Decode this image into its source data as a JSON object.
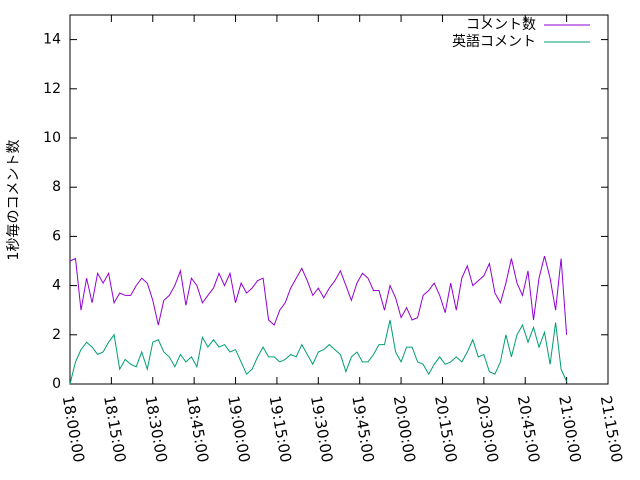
{
  "chart_data": {
    "type": "line",
    "ylabel": "1秒毎のコメント数",
    "x": [
      "18:00:00",
      "18:02:00",
      "18:04:00",
      "18:06:00",
      "18:08:00",
      "18:10:00",
      "18:12:00",
      "18:14:00",
      "18:16:00",
      "18:18:00",
      "18:20:00",
      "18:22:00",
      "18:24:00",
      "18:26:00",
      "18:28:00",
      "18:30:00",
      "18:32:00",
      "18:34:00",
      "18:36:00",
      "18:38:00",
      "18:40:00",
      "18:42:00",
      "18:44:00",
      "18:46:00",
      "18:48:00",
      "18:50:00",
      "18:52:00",
      "18:54:00",
      "18:56:00",
      "18:58:00",
      "19:00:00",
      "19:02:00",
      "19:04:00",
      "19:06:00",
      "19:08:00",
      "19:10:00",
      "19:12:00",
      "19:14:00",
      "19:16:00",
      "19:18:00",
      "19:20:00",
      "19:22:00",
      "19:24:00",
      "19:26:00",
      "19:28:00",
      "19:30:00",
      "19:32:00",
      "19:34:00",
      "19:36:00",
      "19:38:00",
      "19:40:00",
      "19:42:00",
      "19:44:00",
      "19:46:00",
      "19:48:00",
      "19:50:00",
      "19:52:00",
      "19:54:00",
      "19:56:00",
      "19:58:00",
      "20:00:00",
      "20:02:00",
      "20:04:00",
      "20:06:00",
      "20:08:00",
      "20:10:00",
      "20:12:00",
      "20:14:00",
      "20:16:00",
      "20:18:00",
      "20:20:00",
      "20:22:00",
      "20:24:00",
      "20:26:00",
      "20:28:00",
      "20:30:00",
      "20:32:00",
      "20:34:00",
      "20:36:00",
      "20:38:00",
      "20:40:00",
      "20:42:00",
      "20:44:00",
      "20:46:00",
      "20:48:00",
      "20:50:00",
      "20:52:00",
      "20:54:00",
      "20:56:00",
      "20:58:00",
      "21:00:00"
    ],
    "series": [
      {
        "name": "コメント数",
        "color": "#9400d3",
        "values": [
          5.0,
          5.1,
          3.0,
          4.3,
          3.3,
          4.5,
          4.1,
          4.5,
          3.3,
          3.7,
          3.6,
          3.6,
          4.0,
          4.3,
          4.1,
          3.4,
          2.4,
          3.4,
          3.6,
          4.0,
          4.6,
          3.2,
          4.3,
          4.0,
          3.3,
          3.6,
          3.9,
          4.5,
          4.0,
          4.5,
          3.3,
          4.1,
          3.7,
          3.9,
          4.2,
          4.3,
          2.6,
          2.4,
          3.0,
          3.3,
          3.9,
          4.3,
          4.7,
          4.2,
          3.6,
          3.9,
          3.5,
          3.9,
          4.2,
          4.6,
          4.0,
          3.4,
          4.1,
          4.5,
          4.3,
          3.8,
          3.8,
          3.0,
          4.0,
          3.5,
          2.7,
          3.1,
          2.6,
          2.7,
          3.6,
          3.8,
          4.1,
          3.6,
          2.9,
          4.1,
          3.0,
          4.3,
          4.8,
          4.0,
          4.2,
          4.4,
          4.9,
          3.7,
          3.3,
          4.1,
          5.1,
          4.1,
          3.6,
          4.6,
          2.6,
          4.3,
          5.2,
          4.3,
          3.0,
          5.1,
          2.0
        ]
      },
      {
        "name": "英語コメント",
        "color": "#009e73",
        "values": [
          0.0,
          0.9,
          1.4,
          1.7,
          1.5,
          1.2,
          1.3,
          1.7,
          2.0,
          0.6,
          1.0,
          0.8,
          0.7,
          1.3,
          0.6,
          1.7,
          1.8,
          1.3,
          1.1,
          0.7,
          1.2,
          0.9,
          1.1,
          0.7,
          1.9,
          1.5,
          1.8,
          1.5,
          1.6,
          1.3,
          1.4,
          0.9,
          0.4,
          0.6,
          1.1,
          1.5,
          1.1,
          1.1,
          0.9,
          1.0,
          1.2,
          1.1,
          1.6,
          1.2,
          0.8,
          1.3,
          1.4,
          1.6,
          1.4,
          1.2,
          0.5,
          1.1,
          1.3,
          0.9,
          0.9,
          1.2,
          1.6,
          1.6,
          2.6,
          1.3,
          0.9,
          1.5,
          1.5,
          0.9,
          0.8,
          0.4,
          0.8,
          1.1,
          0.8,
          0.9,
          1.1,
          0.9,
          1.3,
          1.8,
          1.1,
          1.2,
          0.5,
          0.4,
          0.9,
          2.0,
          1.1,
          2.0,
          2.4,
          1.7,
          2.3,
          1.5,
          2.1,
          0.8,
          2.5,
          0.6,
          0.1
        ]
      }
    ],
    "xlim": [
      "18:00:00",
      "21:15:00"
    ],
    "xticks": [
      "18:00:00",
      "18:15:00",
      "18:30:00",
      "18:45:00",
      "19:00:00",
      "19:15:00",
      "19:30:00",
      "19:45:00",
      "20:00:00",
      "20:15:00",
      "20:30:00",
      "20:45:00",
      "21:00:00",
      "21:15:00"
    ],
    "ylim": [
      0,
      15
    ],
    "yticks": [
      0,
      2,
      4,
      6,
      8,
      10,
      12,
      14
    ],
    "legend": "top-right"
  }
}
